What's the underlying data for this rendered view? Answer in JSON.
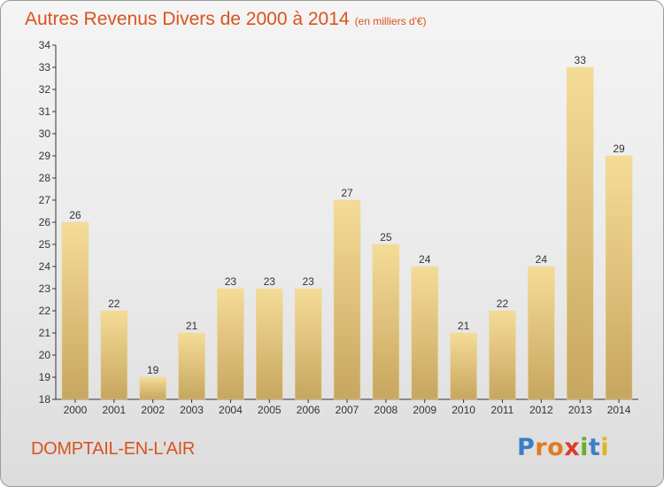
{
  "header": {
    "title": "Autres Revenus Divers de 2000 à 2014",
    "subtitle": "(en milliers d'€)"
  },
  "footer": {
    "commune": "DOMPTAIL-EN-L'AIR",
    "logo_text": "Proxiti"
  },
  "colors": {
    "accent": "#d9531e",
    "bar_light": "#f5dc96",
    "bar_dark": "#c7a65f",
    "logo_letters": [
      "#3b7fc4",
      "#e07b1f",
      "#e07b1f",
      "#e03a2a",
      "#6aae2c",
      "#3b7fc4",
      "#e0b41f"
    ]
  },
  "chart_data": {
    "type": "bar",
    "title": "Autres Revenus Divers de 2000 à 2014",
    "xlabel": "",
    "ylabel": "",
    "categories": [
      "2000",
      "2001",
      "2002",
      "2003",
      "2004",
      "2005",
      "2006",
      "2007",
      "2008",
      "2009",
      "2010",
      "2011",
      "2012",
      "2013",
      "2014"
    ],
    "values": [
      26,
      22,
      19,
      21,
      23,
      23,
      23,
      27,
      25,
      24,
      21,
      22,
      24,
      33,
      29
    ],
    "ylim": [
      18,
      34
    ],
    "yticks": [
      18,
      19,
      20,
      21,
      22,
      23,
      24,
      25,
      26,
      27,
      28,
      29,
      30,
      31,
      32,
      33,
      34
    ],
    "grid": false,
    "legend": "none"
  }
}
